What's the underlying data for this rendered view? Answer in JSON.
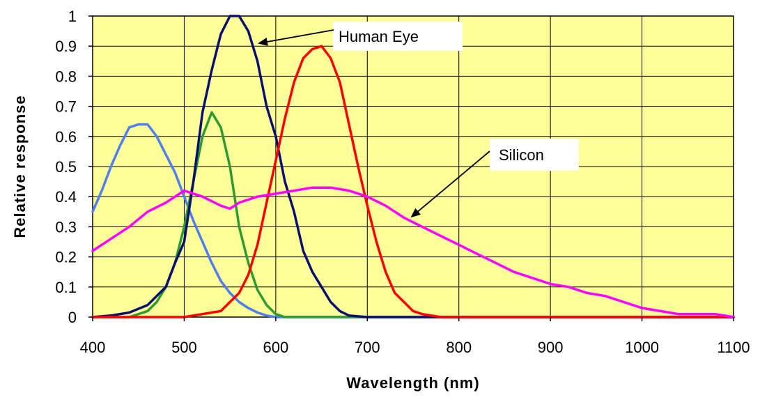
{
  "chart_data": {
    "type": "line",
    "title": "",
    "xlabel": "Wavelength (nm)",
    "ylabel": "Relative response",
    "xlim": [
      400,
      1100
    ],
    "ylim": [
      0,
      1
    ],
    "x_ticks": [
      "400",
      "500",
      "600",
      "700",
      "800",
      "900",
      "1000",
      "1100"
    ],
    "y_ticks": [
      "0",
      "0.1",
      "0.2",
      "0.3",
      "0.4",
      "0.5",
      "0.6",
      "0.7",
      "0.8",
      "0.9",
      "1"
    ],
    "grid": true,
    "plot_background": "#ffff99",
    "annotations": [
      {
        "label": "Human Eye",
        "points_to": "dark-blue curve peak near 555 nm"
      },
      {
        "label": "Silicon",
        "points_to": "magenta curve near 750 nm"
      }
    ],
    "series": [
      {
        "color": "#4f7fef",
        "points": [
          [
            400,
            0.35
          ],
          [
            410,
            0.42
          ],
          [
            420,
            0.5
          ],
          [
            430,
            0.57
          ],
          [
            440,
            0.63
          ],
          [
            450,
            0.64
          ],
          [
            460,
            0.64
          ],
          [
            470,
            0.6
          ],
          [
            480,
            0.54
          ],
          [
            490,
            0.48
          ],
          [
            500,
            0.4
          ],
          [
            510,
            0.32
          ],
          [
            520,
            0.25
          ],
          [
            530,
            0.18
          ],
          [
            540,
            0.12
          ],
          [
            550,
            0.08
          ],
          [
            560,
            0.05
          ],
          [
            570,
            0.03
          ],
          [
            580,
            0.015
          ],
          [
            590,
            0.005
          ],
          [
            600,
            0.0
          ],
          [
            700,
            0.0
          ],
          [
            800,
            0.0
          ],
          [
            900,
            0.0
          ],
          [
            1000,
            0.0
          ],
          [
            1100,
            0.0
          ]
        ]
      },
      {
        "color": "#2f9a2f",
        "points": [
          [
            400,
            0.0
          ],
          [
            440,
            0.0
          ],
          [
            460,
            0.02
          ],
          [
            470,
            0.05
          ],
          [
            480,
            0.1
          ],
          [
            490,
            0.18
          ],
          [
            500,
            0.3
          ],
          [
            510,
            0.45
          ],
          [
            520,
            0.6
          ],
          [
            530,
            0.68
          ],
          [
            540,
            0.63
          ],
          [
            550,
            0.5
          ],
          [
            560,
            0.3
          ],
          [
            570,
            0.18
          ],
          [
            580,
            0.09
          ],
          [
            590,
            0.04
          ],
          [
            600,
            0.01
          ],
          [
            610,
            0.0
          ],
          [
            1100,
            0.0
          ]
        ]
      },
      {
        "color": "#0a1070",
        "points": [
          [
            400,
            0.0
          ],
          [
            420,
            0.005
          ],
          [
            440,
            0.015
          ],
          [
            460,
            0.04
          ],
          [
            470,
            0.07
          ],
          [
            480,
            0.1
          ],
          [
            490,
            0.18
          ],
          [
            500,
            0.25
          ],
          [
            510,
            0.45
          ],
          [
            520,
            0.68
          ],
          [
            530,
            0.82
          ],
          [
            540,
            0.94
          ],
          [
            550,
            1.0
          ],
          [
            560,
            1.0
          ],
          [
            570,
            0.95
          ],
          [
            580,
            0.85
          ],
          [
            590,
            0.7
          ],
          [
            600,
            0.6
          ],
          [
            610,
            0.45
          ],
          [
            620,
            0.35
          ],
          [
            630,
            0.22
          ],
          [
            640,
            0.15
          ],
          [
            650,
            0.1
          ],
          [
            660,
            0.05
          ],
          [
            670,
            0.02
          ],
          [
            680,
            0.005
          ],
          [
            700,
            0.0
          ],
          [
            1100,
            0.0
          ]
        ]
      },
      {
        "color": "#ff0000",
        "points": [
          [
            400,
            0.0
          ],
          [
            500,
            0.0
          ],
          [
            520,
            0.01
          ],
          [
            540,
            0.02
          ],
          [
            560,
            0.08
          ],
          [
            570,
            0.14
          ],
          [
            580,
            0.24
          ],
          [
            590,
            0.38
          ],
          [
            600,
            0.52
          ],
          [
            610,
            0.66
          ],
          [
            620,
            0.78
          ],
          [
            630,
            0.86
          ],
          [
            640,
            0.89
          ],
          [
            650,
            0.9
          ],
          [
            660,
            0.86
          ],
          [
            670,
            0.78
          ],
          [
            680,
            0.64
          ],
          [
            690,
            0.5
          ],
          [
            700,
            0.37
          ],
          [
            710,
            0.25
          ],
          [
            720,
            0.15
          ],
          [
            730,
            0.08
          ],
          [
            740,
            0.05
          ],
          [
            750,
            0.02
          ],
          [
            760,
            0.01
          ],
          [
            780,
            0.0
          ],
          [
            1100,
            0.0
          ]
        ]
      },
      {
        "color": "#ff00ff",
        "points": [
          [
            400,
            0.22
          ],
          [
            420,
            0.26
          ],
          [
            440,
            0.3
          ],
          [
            460,
            0.35
          ],
          [
            480,
            0.38
          ],
          [
            500,
            0.42
          ],
          [
            520,
            0.4
          ],
          [
            540,
            0.37
          ],
          [
            550,
            0.36
          ],
          [
            560,
            0.38
          ],
          [
            580,
            0.4
          ],
          [
            600,
            0.41
          ],
          [
            620,
            0.42
          ],
          [
            640,
            0.43
          ],
          [
            660,
            0.43
          ],
          [
            680,
            0.42
          ],
          [
            700,
            0.4
          ],
          [
            720,
            0.37
          ],
          [
            740,
            0.33
          ],
          [
            760,
            0.3
          ],
          [
            780,
            0.27
          ],
          [
            800,
            0.24
          ],
          [
            820,
            0.21
          ],
          [
            840,
            0.18
          ],
          [
            860,
            0.15
          ],
          [
            880,
            0.13
          ],
          [
            900,
            0.11
          ],
          [
            920,
            0.1
          ],
          [
            940,
            0.08
          ],
          [
            960,
            0.07
          ],
          [
            980,
            0.05
          ],
          [
            1000,
            0.03
          ],
          [
            1020,
            0.02
          ],
          [
            1040,
            0.01
          ],
          [
            1060,
            0.01
          ],
          [
            1080,
            0.01
          ],
          [
            1100,
            0.0
          ]
        ]
      }
    ]
  }
}
